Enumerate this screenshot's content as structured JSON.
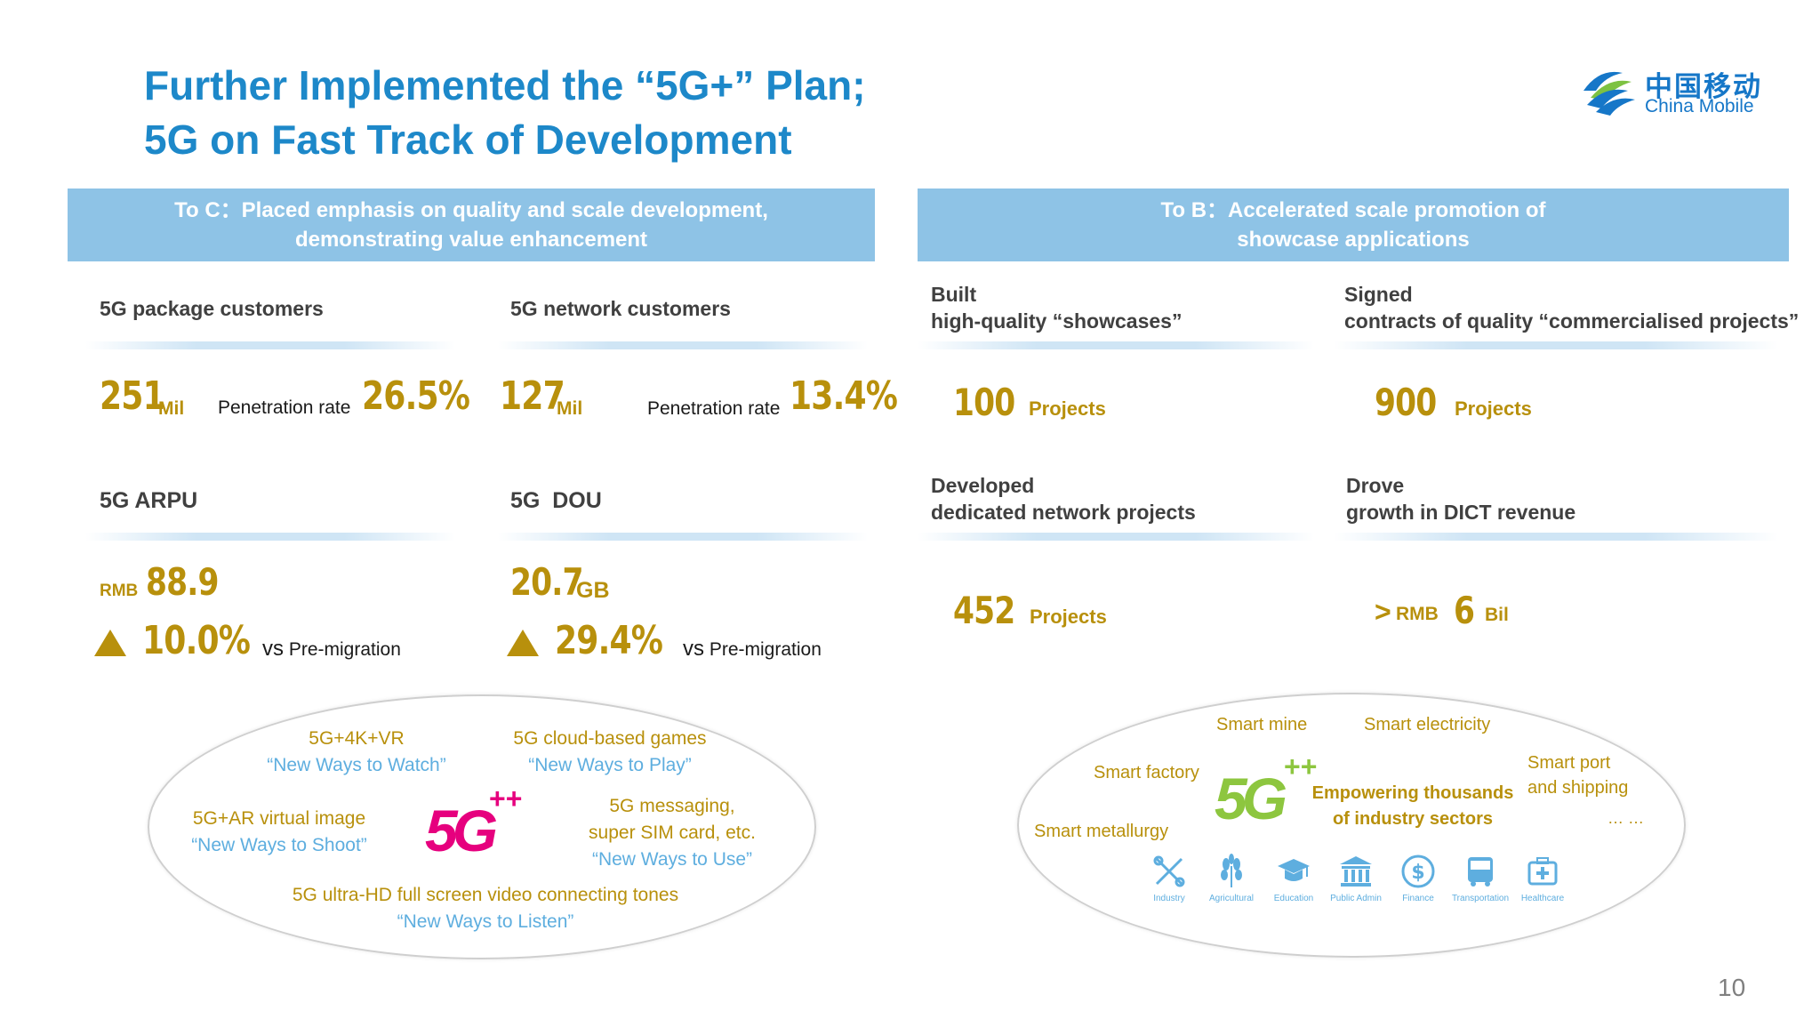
{
  "title": {
    "line1": "Further Implemented the “5G+” Plan;",
    "line2": "5G on Fast Track of Development"
  },
  "logo": {
    "chinese": "中国移动",
    "english": "China Mobile"
  },
  "page_number": "10",
  "left": {
    "banner": {
      "line1": "To C：Placed emphasis on quality and scale development,",
      "line2": "demonstrating value enhancement"
    },
    "package": {
      "label": "5G package customers",
      "value": "251",
      "unit": "Mil",
      "pen_label": "Penetration rate",
      "pen_value": "26.5%"
    },
    "network": {
      "label": "5G network customers",
      "value": "127",
      "unit": "Mil",
      "pen_label": "Penetration rate",
      "pen_value": "13.4%"
    },
    "arpu": {
      "label": "5G ARPU",
      "prefix": "RMB",
      "value": "88.9",
      "growth": "10.0%",
      "vs": "vs",
      "vs_text": "Pre-migration"
    },
    "dou": {
      "label": "5G  DOU",
      "value": "20.7",
      "unit": "GB",
      "growth": "29.4%",
      "vs": "vs",
      "vs_text": "Pre-migration"
    },
    "apps": {
      "watch": {
        "name": "5G+4K+VR",
        "slogan": "“New Ways to Watch”"
      },
      "play": {
        "name": "5G cloud-based games",
        "slogan": "“New Ways to Play”"
      },
      "shoot": {
        "name": "5G+AR virtual image",
        "slogan": "“New Ways to Shoot”"
      },
      "use": {
        "name1": "5G messaging,",
        "name2": "super SIM card, etc.",
        "slogan": "“New Ways to Use”"
      },
      "listen": {
        "name": "5G ultra-HD full screen video connecting tones",
        "slogan": "“New Ways to Listen”"
      },
      "logo_text": "5G",
      "logo_plus": "++"
    }
  },
  "right": {
    "banner": {
      "line1": "To B：Accelerated scale promotion of",
      "line2": "showcase applications"
    },
    "showcases": {
      "label1": "Built",
      "label2": "high-quality “showcases”",
      "value": "100",
      "unit": "Projects"
    },
    "contracts": {
      "label1": "Signed",
      "label2": "contracts of quality “commercialised projects”",
      "value": "900",
      "unit": "Projects"
    },
    "dedicated": {
      "label1": "Developed",
      "label2": "dedicated network projects",
      "value": "452",
      "unit": "Projects"
    },
    "dict": {
      "label1": "Drove",
      "label2": "growth in DICT revenue",
      "prefix": ">",
      "rmb": "RMB",
      "value": "6",
      "unit": "Bil"
    },
    "sectors": {
      "mine": "Smart mine",
      "electricity": "Smart electricity",
      "factory": "Smart factory",
      "port1": "Smart port",
      "port2": "and shipping",
      "metallurgy": "Smart metallurgy",
      "ellipsis": "… …",
      "center1": "Empowering thousands",
      "center2": "of industry sectors",
      "logo_text": "5G",
      "logo_plus": "++"
    },
    "icons": [
      {
        "label": "Industry",
        "icon": "tools-icon"
      },
      {
        "label": "Agricultural",
        "icon": "wheat-icon"
      },
      {
        "label": "Education",
        "icon": "graduation-cap-icon"
      },
      {
        "label": "Public Admin",
        "icon": "government-building-icon"
      },
      {
        "label": "Finance",
        "icon": "dollar-icon"
      },
      {
        "label": "Transportation",
        "icon": "bus-icon"
      },
      {
        "label": "Healthcare",
        "icon": "medical-kit-icon"
      }
    ]
  },
  "colors": {
    "title_blue": "#1d88c9",
    "banner_blue": "#8ec3e6",
    "gold": "#b8900c",
    "slogan_blue": "#5eaedf",
    "green": "#8dc63f",
    "magenta": "#e6007e"
  }
}
